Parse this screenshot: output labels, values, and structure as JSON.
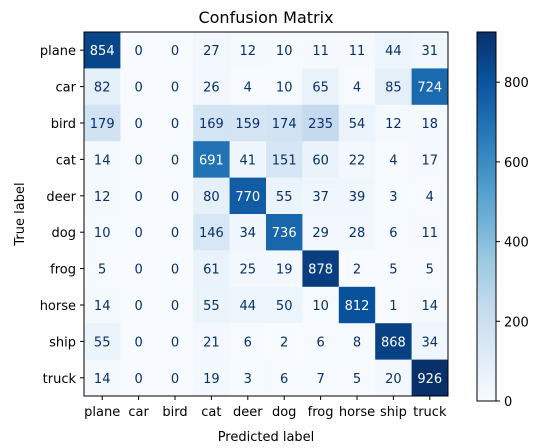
{
  "chart_data": {
    "type": "heatmap",
    "title": "Confusion Matrix",
    "xlabel": "Predicted label",
    "ylabel": "True label",
    "categories": [
      "plane",
      "car",
      "bird",
      "cat",
      "deer",
      "dog",
      "frog",
      "horse",
      "ship",
      "truck"
    ],
    "matrix": [
      [
        854,
        0,
        0,
        27,
        12,
        10,
        11,
        11,
        44,
        31
      ],
      [
        82,
        0,
        0,
        26,
        4,
        10,
        65,
        4,
        85,
        724
      ],
      [
        179,
        0,
        0,
        169,
        159,
        174,
        235,
        54,
        12,
        18
      ],
      [
        14,
        0,
        0,
        691,
        41,
        151,
        60,
        22,
        4,
        17
      ],
      [
        12,
        0,
        0,
        80,
        770,
        55,
        37,
        39,
        3,
        4
      ],
      [
        10,
        0,
        0,
        146,
        34,
        736,
        29,
        28,
        6,
        11
      ],
      [
        5,
        0,
        0,
        61,
        25,
        19,
        878,
        2,
        5,
        5
      ],
      [
        14,
        0,
        0,
        55,
        44,
        50,
        10,
        812,
        1,
        14
      ],
      [
        55,
        0,
        0,
        21,
        6,
        2,
        6,
        8,
        868,
        34
      ],
      [
        14,
        0,
        0,
        19,
        3,
        6,
        7,
        5,
        20,
        926
      ]
    ],
    "colormap": "Blues",
    "color_range": [
      0,
      926
    ],
    "colorbar_ticks": [
      0,
      200,
      400,
      600,
      800
    ],
    "colorbar_tick_labels": [
      "0",
      "200",
      "400",
      "600",
      "800"
    ]
  }
}
